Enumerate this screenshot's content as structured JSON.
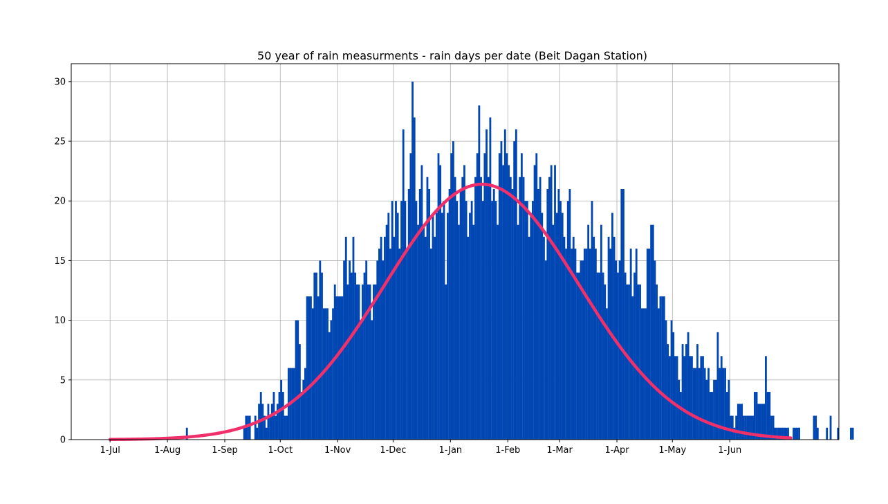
{
  "chart_data": {
    "type": "bar",
    "title": "50 year of rain measurments - rain days per date (Beit Dagan Station)",
    "xlabel": "",
    "ylabel": "",
    "x_unit": "day of season (day 0 = 1-Jul)",
    "xlim": [
      -21,
      394
    ],
    "ylim": [
      0,
      31.5
    ],
    "grid": true,
    "bar_color": "#0047b3",
    "curve_color": "#f0306a",
    "x_ticks": [
      {
        "label": "1-Jul",
        "day": 0
      },
      {
        "label": "1-Aug",
        "day": 31
      },
      {
        "label": "1-Sep",
        "day": 62
      },
      {
        "label": "1-Oct",
        "day": 92
      },
      {
        "label": "1-Nov",
        "day": 123
      },
      {
        "label": "1-Dec",
        "day": 153
      },
      {
        "label": "1-Jan",
        "day": 184
      },
      {
        "label": "1-Feb",
        "day": 215
      },
      {
        "label": "1-Mar",
        "day": 243
      },
      {
        "label": "1-Apr",
        "day": 274
      },
      {
        "label": "1-May",
        "day": 304
      },
      {
        "label": "1-Jun",
        "day": 335
      }
    ],
    "y_ticks": [
      0,
      5,
      10,
      15,
      20,
      25,
      30
    ],
    "series": [
      {
        "kind": "histogram",
        "start_day": 41,
        "values": [
          1,
          0,
          0,
          0,
          0,
          0,
          0,
          0,
          0,
          0,
          0,
          0,
          0,
          0,
          0,
          0,
          0,
          0,
          0,
          0,
          0,
          0,
          0,
          0,
          0,
          0,
          0,
          0,
          0,
          0,
          0,
          0,
          0,
          0,
          0,
          0,
          0,
          0,
          0,
          0,
          0,
          0,
          0,
          0,
          0,
          0,
          0,
          0,
          0,
          0,
          0,
          1,
          0,
          0,
          0,
          0,
          0,
          0,
          0,
          0,
          0,
          0,
          0,
          0,
          0,
          0,
          0,
          0,
          0,
          0,
          0,
          0,
          0,
          0,
          0,
          0,
          0,
          0,
          0,
          0,
          0,
          0,
          0,
          0,
          0,
          0,
          0,
          0,
          0,
          0,
          0,
          0,
          0,
          0,
          0,
          0,
          0,
          0,
          0,
          0,
          0,
          0,
          0,
          0,
          0,
          0,
          0,
          0,
          0,
          0,
          0,
          0,
          0,
          0,
          0,
          0,
          0,
          0,
          0,
          0,
          0,
          0,
          0,
          0,
          0,
          0,
          0,
          0,
          0,
          0,
          0,
          0,
          0,
          0,
          0,
          0,
          0,
          0,
          0,
          0,
          0,
          0,
          0,
          0,
          0,
          0,
          0,
          0,
          0,
          0,
          0,
          0,
          0,
          0,
          0,
          0,
          0,
          0,
          0,
          0,
          0,
          0,
          0,
          0,
          0,
          0,
          0,
          0,
          0,
          0,
          0,
          0,
          0,
          0,
          0,
          0,
          0,
          0,
          0,
          0,
          0,
          0,
          0,
          0,
          0,
          0,
          0,
          0,
          0,
          0,
          0,
          0,
          0,
          0,
          0,
          0,
          0,
          0,
          0,
          0,
          0,
          0,
          0,
          0,
          0,
          0,
          0,
          0,
          0,
          0,
          0,
          0,
          0,
          0,
          0,
          0,
          0,
          0,
          0,
          0,
          0,
          0,
          0,
          0,
          0,
          0,
          0,
          0,
          0,
          0,
          0,
          0,
          0,
          0,
          0,
          0,
          0,
          0,
          0,
          0,
          0,
          0,
          0,
          0,
          0,
          0,
          0,
          0,
          0,
          0,
          0,
          0,
          0,
          0,
          0,
          0,
          0,
          0,
          0,
          0,
          0,
          0,
          0,
          0,
          0,
          0,
          0,
          0,
          0,
          0,
          0,
          0,
          0,
          0,
          0,
          0,
          0,
          0,
          0,
          0,
          0,
          0,
          0,
          0,
          0,
          0,
          0,
          0,
          0,
          0,
          0,
          0,
          0,
          0,
          0,
          0,
          0,
          0,
          0,
          0,
          0,
          0,
          0,
          0,
          0,
          0,
          0,
          0,
          0,
          0,
          0,
          0,
          0,
          0,
          0,
          0,
          0,
          0,
          0,
          0,
          0,
          0,
          0,
          0,
          0,
          0,
          0,
          0,
          0,
          0,
          0,
          0,
          0,
          0,
          0,
          0,
          0,
          0,
          0,
          0,
          0,
          0,
          0,
          0,
          0,
          0,
          0,
          0,
          0,
          0,
          0,
          0,
          0,
          0,
          0,
          0,
          0,
          0,
          0,
          0,
          0,
          0,
          0,
          0,
          0,
          0,
          0,
          0,
          0,
          0,
          0,
          0,
          0,
          0,
          0,
          0,
          0
        ]
      },
      {
        "kind": "histogram-main",
        "start_day": 72,
        "values": [
          1,
          2,
          2,
          2,
          0,
          0,
          2,
          1,
          3,
          4,
          3,
          2,
          1,
          3,
          2,
          3,
          4,
          2,
          3,
          4,
          5,
          4,
          2,
          2,
          6,
          6,
          6,
          6,
          10,
          10,
          8,
          4,
          5,
          6,
          12,
          12,
          12,
          11,
          14,
          14,
          12,
          15,
          14,
          11,
          11,
          11,
          9,
          10,
          11,
          13,
          12,
          12,
          12,
          12,
          15,
          17,
          13,
          15,
          14,
          17,
          14,
          13,
          13,
          10,
          13,
          14,
          15,
          13,
          13,
          10,
          13,
          13,
          15,
          16,
          17,
          15,
          17,
          18,
          19,
          16,
          20,
          17,
          20,
          19,
          16,
          20,
          26,
          20,
          16,
          21,
          24,
          30,
          27,
          20,
          18,
          21,
          23,
          18,
          17,
          22,
          21,
          16,
          19,
          17,
          19,
          24,
          23,
          19,
          20,
          13,
          19,
          21,
          24,
          25,
          22,
          20,
          18,
          21,
          22,
          23,
          20,
          17,
          19,
          20,
          18,
          22,
          24,
          28,
          22,
          20,
          24,
          26,
          22,
          27,
          20,
          21,
          20,
          18,
          24,
          25,
          23,
          26,
          24,
          23,
          22,
          21,
          25,
          26,
          18,
          22,
          24,
          22,
          20,
          20,
          17,
          19,
          20,
          23,
          24,
          21,
          22,
          19,
          17,
          15,
          21,
          22,
          23,
          18,
          23,
          19,
          21,
          20,
          19,
          17,
          16,
          20,
          21,
          16,
          17,
          16,
          14,
          14,
          15,
          15,
          16,
          16,
          18,
          16,
          20,
          17,
          16,
          14,
          14,
          18,
          14,
          13,
          11,
          17,
          16,
          19,
          17,
          15,
          14,
          15,
          21,
          21,
          14,
          13,
          13,
          16,
          12,
          14,
          16,
          13,
          13,
          11,
          11,
          11,
          16,
          16,
          18,
          18,
          15,
          13,
          11,
          12,
          12,
          12,
          10,
          8,
          7,
          10,
          9,
          7,
          7,
          5,
          4,
          8,
          7,
          8,
          9,
          7,
          7,
          6,
          6,
          8,
          6,
          7,
          7,
          6,
          5,
          6,
          4,
          4,
          5,
          5,
          9,
          6,
          7,
          6,
          6,
          4,
          5,
          2,
          2,
          1,
          2,
          3,
          3,
          3,
          2,
          2,
          2,
          2,
          2,
          2,
          4,
          4,
          3,
          3,
          3,
          3,
          7,
          4,
          4,
          2,
          2,
          1,
          1,
          1,
          1,
          1,
          1,
          1,
          1,
          0,
          0,
          1,
          1,
          1,
          1,
          0,
          0,
          0,
          0,
          0,
          0,
          0,
          2,
          2,
          1,
          0,
          0,
          0,
          0,
          1,
          0,
          2,
          0,
          0,
          0,
          1,
          0,
          0,
          0,
          0,
          0,
          0,
          1,
          1,
          0
        ]
      },
      {
        "kind": "fit-curve",
        "name": "",
        "peak_day": 201,
        "peak_value": 21.4,
        "sigma_days": 52.5
      }
    ]
  }
}
